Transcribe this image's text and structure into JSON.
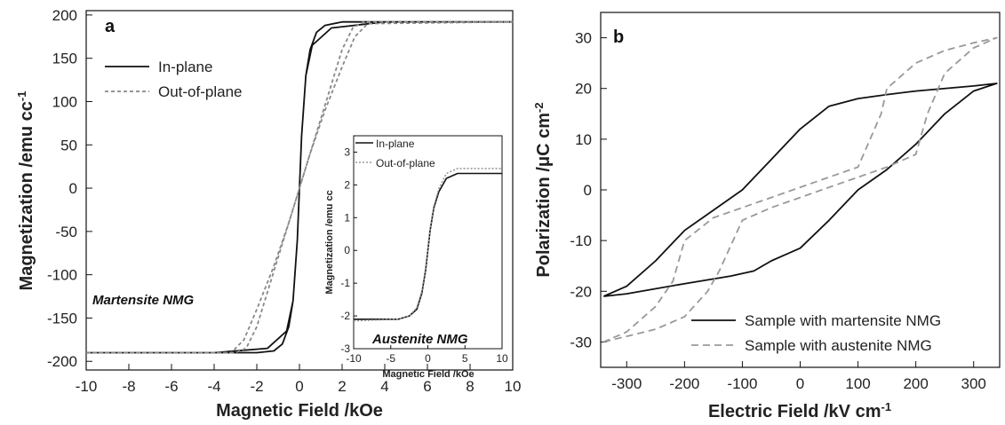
{
  "chart_data": [
    {
      "id": "a",
      "type": "line",
      "panel_label": "a",
      "xlabel": "Magnetic Field /kOe",
      "ylabel": "Magnetization /emu cc",
      "ylabel_sup": "-1",
      "xlim": [
        -10,
        10
      ],
      "ylim": [
        -210,
        205
      ],
      "xticks": [
        "-10",
        "-8",
        "-6",
        "-4",
        "-2",
        "0",
        "2",
        "4",
        "6",
        "8",
        "10"
      ],
      "yticks": [
        "-200",
        "-150",
        "-100",
        "-50",
        "0",
        "50",
        "100",
        "150",
        "200"
      ],
      "legend": "top-left",
      "annotation": "Martensite NMG",
      "series": [
        {
          "name": "In-plane",
          "style": "solid",
          "color": "#111111",
          "x": [
            -10,
            -4,
            -1.5,
            -0.6,
            -0.3,
            -0.1,
            0.1,
            0.3,
            0.5,
            0.8,
            1.2,
            2,
            10,
            4,
            1.5,
            0.6,
            0.3,
            0.1,
            -0.1,
            -0.3,
            -0.5,
            -0.8,
            -1.2,
            -2,
            -10
          ],
          "y": [
            -190,
            -190,
            -185,
            -165,
            -130,
            -60,
            60,
            130,
            160,
            180,
            188,
            192,
            192,
            192,
            185,
            165,
            130,
            60,
            -60,
            -130,
            -160,
            -180,
            -188,
            -190,
            -190
          ]
        },
        {
          "name": "Out-of-plane",
          "style": "dashed",
          "color": "#888888",
          "x": [
            -10,
            -3.2,
            -2.6,
            -2,
            -1.2,
            -0.5,
            0,
            0.5,
            1,
            1.5,
            2,
            2.5,
            3,
            10,
            3.2,
            2.6,
            2,
            1.2,
            0.5,
            0,
            -0.5,
            -1,
            -1.5,
            -2,
            -2.5,
            -3,
            -10
          ],
          "y": [
            -190,
            -190,
            -175,
            -140,
            -90,
            -40,
            0,
            40,
            80,
            120,
            160,
            185,
            192,
            192,
            190,
            175,
            140,
            90,
            40,
            0,
            -40,
            -80,
            -120,
            -160,
            -185,
            -190,
            -190
          ]
        }
      ]
    },
    {
      "id": "a-inset",
      "type": "line",
      "xlabel": "Magnetic Field /kOe",
      "ylabel": "Magnetization /emu cc",
      "xlim": [
        -10,
        10
      ],
      "ylim": [
        -3,
        3.5
      ],
      "xticks": [
        "-10",
        "-5",
        "0",
        "5",
        "10"
      ],
      "yticks": [
        "-3",
        "-2",
        "-1",
        "0",
        "1",
        "2",
        "3"
      ],
      "annotation": "Austenite NMG",
      "series": [
        {
          "name": "In-plane",
          "style": "solid",
          "color": "#111111",
          "x": [
            -10,
            -4,
            -2.5,
            -1.5,
            -0.8,
            -0.3,
            0,
            0.3,
            0.8,
            1.5,
            2.5,
            4,
            10
          ],
          "y": [
            -2.1,
            -2.1,
            -2.0,
            -1.8,
            -1.3,
            -0.6,
            0,
            0.6,
            1.3,
            1.8,
            2.2,
            2.35,
            2.35
          ]
        },
        {
          "name": "Out-of-plane",
          "style": "dotted",
          "color": "#999999",
          "x": [
            -10,
            -4,
            -2.5,
            -1.5,
            -0.8,
            -0.3,
            0,
            0.3,
            0.8,
            1.5,
            2.5,
            4,
            10
          ],
          "y": [
            -2.15,
            -2.1,
            -2.0,
            -1.75,
            -1.25,
            -0.55,
            0.05,
            0.65,
            1.35,
            1.9,
            2.35,
            2.5,
            2.5
          ]
        }
      ]
    },
    {
      "id": "b",
      "type": "line",
      "panel_label": "b",
      "xlabel": "Electric Field /kV cm",
      "xlabel_sup": "-1",
      "ylabel": "Polarization /μC cm",
      "ylabel_sup": "-2",
      "xlim": [
        -345,
        345
      ],
      "ylim": [
        -35,
        35
      ],
      "xticks": [
        "-300",
        "-200",
        "-100",
        "0",
        "100",
        "200",
        "300"
      ],
      "yticks": [
        "-30",
        "-20",
        "-10",
        "0",
        "10",
        "20",
        "30"
      ],
      "legend": "bottom-right",
      "series": [
        {
          "name": "Sample with martensite NMG",
          "style": "solid",
          "color": "#111111",
          "x": [
            -340,
            -300,
            -200,
            -120,
            -80,
            -50,
            0,
            50,
            100,
            150,
            200,
            250,
            300,
            340,
            300,
            200,
            150,
            100,
            50,
            0,
            -50,
            -100,
            -150,
            -200,
            -250,
            -300,
            -340
          ],
          "y": [
            -21,
            -20.5,
            -18.5,
            -17,
            -16,
            -14,
            -11.5,
            -6,
            0,
            4,
            9,
            15,
            19.5,
            21,
            20.5,
            19.5,
            18.8,
            18,
            16.5,
            12,
            6,
            0,
            -4,
            -8,
            -14,
            -19,
            -21
          ]
        },
        {
          "name": "Sample with austenite NMG",
          "style": "dashed",
          "color": "#999999",
          "x": [
            -340,
            -250,
            -200,
            -160,
            -140,
            -100,
            -50,
            0,
            50,
            100,
            150,
            200,
            220,
            250,
            300,
            340,
            300,
            250,
            200,
            150,
            140,
            100,
            50,
            0,
            -50,
            -100,
            -150,
            -200,
            -220,
            -250,
            -300,
            -340
          ],
          "y": [
            -30,
            -27.5,
            -25,
            -20,
            -16,
            -6,
            -3.5,
            -1.5,
            0.5,
            2.5,
            4.5,
            7,
            15,
            23,
            28,
            30,
            29,
            27.5,
            25,
            20,
            15,
            4.5,
            2.5,
            0.5,
            -1.5,
            -3.5,
            -5.5,
            -10,
            -18,
            -23,
            -28,
            -30
          ]
        }
      ]
    }
  ]
}
